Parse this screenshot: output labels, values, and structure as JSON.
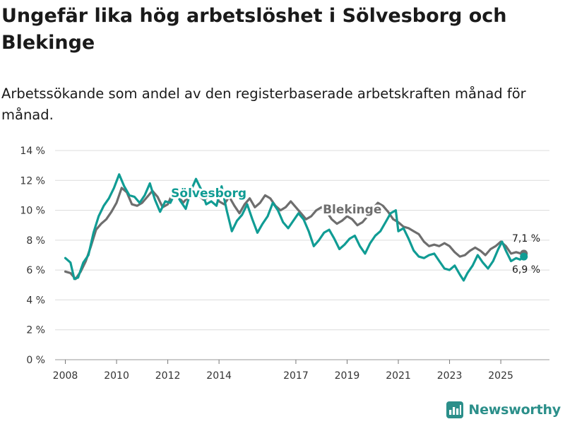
{
  "title": "Ungefär lika hög arbetslöshet i Sölvesborg och Blekinge",
  "subtitle": "Arbetssökande som andel av den registerbaserade arbetskraften månad för månad.",
  "brand": {
    "name": "Newsworthy",
    "icon": "newsworthy-logo-icon",
    "color": "#2b8f8a"
  },
  "chart_data": {
    "type": "line",
    "title": "Ungefär lika hög arbetslöshet i Sölvesborg och Blekinge",
    "subtitle": "Arbetssökande som andel av den registerbaserade arbetskraften månad för månad.",
    "xlabel": "",
    "ylabel": "",
    "xlim": [
      2007.6,
      2026.9
    ],
    "ylim": [
      0,
      14
    ],
    "grid": true,
    "y_ticks": [
      0,
      2,
      4,
      6,
      8,
      10,
      12,
      14
    ],
    "y_tick_labels": [
      "0 %",
      "2 %",
      "4 %",
      "6 %",
      "8 %",
      "10 %",
      "12 %",
      "14 %"
    ],
    "x_ticks": [
      2008,
      2010,
      2012,
      2014,
      2017,
      2019,
      2021,
      2023,
      2025
    ],
    "x_tick_labels": [
      "2008",
      "2010",
      "2012",
      "2014",
      "2017",
      "2019",
      "2021",
      "2023",
      "2025"
    ],
    "series": [
      {
        "name": "Blekinge",
        "label": "Blekinge",
        "color": "#6e6e6e",
        "last_value_label": "7,1 %",
        "points": [
          [
            2008.0,
            5.9
          ],
          [
            2008.2,
            5.8
          ],
          [
            2008.4,
            5.4
          ],
          [
            2008.6,
            5.9
          ],
          [
            2008.8,
            6.6
          ],
          [
            2009.0,
            7.6
          ],
          [
            2009.2,
            8.7
          ],
          [
            2009.4,
            9.1
          ],
          [
            2009.6,
            9.4
          ],
          [
            2009.8,
            9.9
          ],
          [
            2010.0,
            10.5
          ],
          [
            2010.2,
            11.5
          ],
          [
            2010.4,
            11.2
          ],
          [
            2010.6,
            10.4
          ],
          [
            2010.8,
            10.3
          ],
          [
            2011.0,
            10.5
          ],
          [
            2011.2,
            10.9
          ],
          [
            2011.4,
            11.3
          ],
          [
            2011.6,
            10.9
          ],
          [
            2011.8,
            10.2
          ],
          [
            2012.0,
            10.4
          ],
          [
            2012.2,
            11.2
          ],
          [
            2012.4,
            11.0
          ],
          [
            2012.6,
            10.5
          ],
          [
            2012.8,
            10.9
          ],
          [
            2013.0,
            11.4
          ],
          [
            2013.2,
            11.0
          ],
          [
            2013.4,
            10.7
          ],
          [
            2013.6,
            10.9
          ],
          [
            2013.8,
            11.2
          ],
          [
            2014.0,
            10.6
          ],
          [
            2014.2,
            10.4
          ],
          [
            2014.4,
            10.9
          ],
          [
            2014.6,
            10.3
          ],
          [
            2014.8,
            9.8
          ],
          [
            2015.0,
            10.4
          ],
          [
            2015.2,
            10.8
          ],
          [
            2015.4,
            10.2
          ],
          [
            2015.6,
            10.5
          ],
          [
            2015.8,
            11.0
          ],
          [
            2016.0,
            10.8
          ],
          [
            2016.2,
            10.3
          ],
          [
            2016.4,
            10.0
          ],
          [
            2016.6,
            10.2
          ],
          [
            2016.8,
            10.6
          ],
          [
            2017.0,
            10.2
          ],
          [
            2017.2,
            9.8
          ],
          [
            2017.4,
            9.4
          ],
          [
            2017.6,
            9.6
          ],
          [
            2017.8,
            10.0
          ],
          [
            2018.0,
            10.2
          ],
          [
            2018.2,
            9.9
          ],
          [
            2018.4,
            9.4
          ],
          [
            2018.6,
            9.1
          ],
          [
            2018.8,
            9.3
          ],
          [
            2019.0,
            9.6
          ],
          [
            2019.2,
            9.4
          ],
          [
            2019.4,
            9.0
          ],
          [
            2019.6,
            9.2
          ],
          [
            2019.8,
            9.6
          ],
          [
            2020.0,
            10.1
          ],
          [
            2020.2,
            10.5
          ],
          [
            2020.4,
            10.3
          ],
          [
            2020.6,
            9.9
          ],
          [
            2020.8,
            9.4
          ],
          [
            2021.0,
            9.2
          ],
          [
            2021.2,
            8.9
          ],
          [
            2021.4,
            8.8
          ],
          [
            2021.6,
            8.6
          ],
          [
            2021.8,
            8.4
          ],
          [
            2022.0,
            7.9
          ],
          [
            2022.2,
            7.6
          ],
          [
            2022.4,
            7.7
          ],
          [
            2022.6,
            7.6
          ],
          [
            2022.8,
            7.8
          ],
          [
            2023.0,
            7.6
          ],
          [
            2023.2,
            7.2
          ],
          [
            2023.4,
            6.9
          ],
          [
            2023.6,
            7.0
          ],
          [
            2023.8,
            7.3
          ],
          [
            2024.0,
            7.5
          ],
          [
            2024.2,
            7.3
          ],
          [
            2024.4,
            7.0
          ],
          [
            2024.6,
            7.4
          ],
          [
            2024.8,
            7.6
          ],
          [
            2025.0,
            7.9
          ],
          [
            2025.2,
            7.6
          ],
          [
            2025.4,
            7.1
          ],
          [
            2025.6,
            7.2
          ],
          [
            2025.8,
            7.1
          ],
          [
            2025.9,
            7.1
          ]
        ]
      },
      {
        "name": "Sölvesborg",
        "label": "Sölvesborg",
        "color": "#109c94",
        "last_value_label": "6,9 %",
        "points": [
          [
            2008.0,
            6.8
          ],
          [
            2008.2,
            6.5
          ],
          [
            2008.35,
            5.4
          ],
          [
            2008.5,
            5.5
          ],
          [
            2008.7,
            6.5
          ],
          [
            2008.9,
            7.0
          ],
          [
            2009.1,
            8.5
          ],
          [
            2009.3,
            9.6
          ],
          [
            2009.5,
            10.3
          ],
          [
            2009.7,
            10.8
          ],
          [
            2009.9,
            11.5
          ],
          [
            2010.1,
            12.4
          ],
          [
            2010.3,
            11.6
          ],
          [
            2010.5,
            11.0
          ],
          [
            2010.7,
            10.9
          ],
          [
            2010.9,
            10.5
          ],
          [
            2011.1,
            11.0
          ],
          [
            2011.3,
            11.8
          ],
          [
            2011.5,
            10.7
          ],
          [
            2011.7,
            9.9
          ],
          [
            2011.9,
            10.6
          ],
          [
            2012.1,
            10.5
          ],
          [
            2012.3,
            11.2
          ],
          [
            2012.5,
            10.6
          ],
          [
            2012.7,
            10.1
          ],
          [
            2012.9,
            11.3
          ],
          [
            2013.1,
            12.1
          ],
          [
            2013.3,
            11.4
          ],
          [
            2013.5,
            10.4
          ],
          [
            2013.7,
            10.6
          ],
          [
            2013.9,
            10.3
          ],
          [
            2014.1,
            11.6
          ],
          [
            2014.3,
            10.0
          ],
          [
            2014.5,
            8.6
          ],
          [
            2014.7,
            9.3
          ],
          [
            2014.9,
            9.7
          ],
          [
            2015.1,
            10.4
          ],
          [
            2015.3,
            9.4
          ],
          [
            2015.5,
            8.5
          ],
          [
            2015.7,
            9.1
          ],
          [
            2015.9,
            9.6
          ],
          [
            2016.1,
            10.5
          ],
          [
            2016.3,
            10.0
          ],
          [
            2016.5,
            9.2
          ],
          [
            2016.7,
            8.8
          ],
          [
            2016.9,
            9.3
          ],
          [
            2017.1,
            9.8
          ],
          [
            2017.3,
            9.4
          ],
          [
            2017.5,
            8.6
          ],
          [
            2017.7,
            7.6
          ],
          [
            2017.9,
            8.0
          ],
          [
            2018.1,
            8.5
          ],
          [
            2018.3,
            8.7
          ],
          [
            2018.5,
            8.1
          ],
          [
            2018.7,
            7.4
          ],
          [
            2018.9,
            7.7
          ],
          [
            2019.1,
            8.1
          ],
          [
            2019.3,
            8.3
          ],
          [
            2019.5,
            7.6
          ],
          [
            2019.7,
            7.1
          ],
          [
            2019.9,
            7.8
          ],
          [
            2020.1,
            8.3
          ],
          [
            2020.3,
            8.6
          ],
          [
            2020.5,
            9.2
          ],
          [
            2020.7,
            9.8
          ],
          [
            2020.9,
            10.0
          ],
          [
            2021.0,
            8.6
          ],
          [
            2021.2,
            8.8
          ],
          [
            2021.4,
            8.1
          ],
          [
            2021.6,
            7.3
          ],
          [
            2021.8,
            6.9
          ],
          [
            2022.0,
            6.8
          ],
          [
            2022.2,
            7.0
          ],
          [
            2022.4,
            7.1
          ],
          [
            2022.6,
            6.6
          ],
          [
            2022.8,
            6.1
          ],
          [
            2023.0,
            6.0
          ],
          [
            2023.2,
            6.3
          ],
          [
            2023.4,
            5.7
          ],
          [
            2023.55,
            5.3
          ],
          [
            2023.7,
            5.8
          ],
          [
            2023.9,
            6.3
          ],
          [
            2024.1,
            7.0
          ],
          [
            2024.3,
            6.5
          ],
          [
            2024.5,
            6.1
          ],
          [
            2024.7,
            6.6
          ],
          [
            2024.9,
            7.4
          ],
          [
            2025.05,
            7.9
          ],
          [
            2025.2,
            7.3
          ],
          [
            2025.4,
            6.6
          ],
          [
            2025.6,
            6.8
          ],
          [
            2025.75,
            6.7
          ],
          [
            2025.9,
            6.9
          ]
        ]
      }
    ]
  }
}
